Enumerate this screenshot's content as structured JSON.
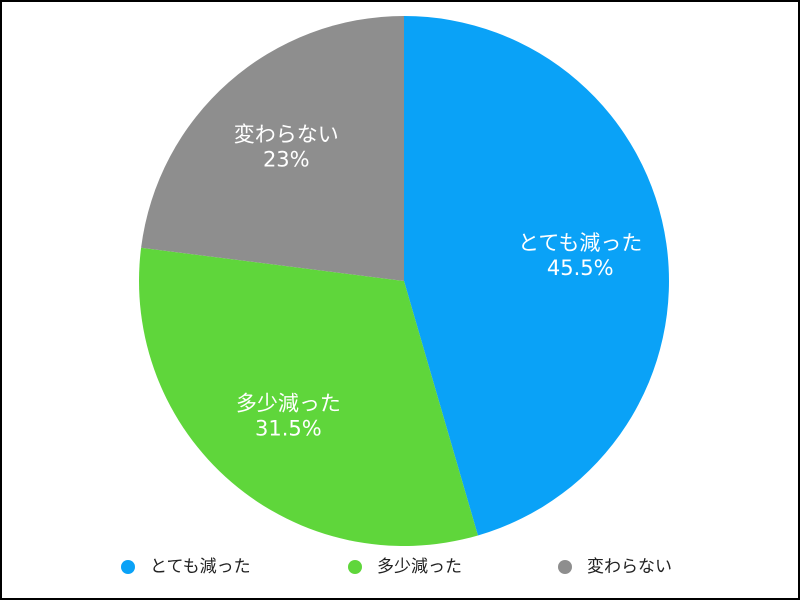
{
  "chart_data": {
    "type": "pie",
    "categories": [
      "とても減った",
      "多少減った",
      "変わらない"
    ],
    "values": [
      45.5,
      31.5,
      23
    ],
    "value_labels": [
      "45.5%",
      "31.5%",
      "23%"
    ],
    "colors": [
      "#0aa2f7",
      "#5fd63b",
      "#8e8e8e"
    ],
    "legend": "bottom"
  }
}
